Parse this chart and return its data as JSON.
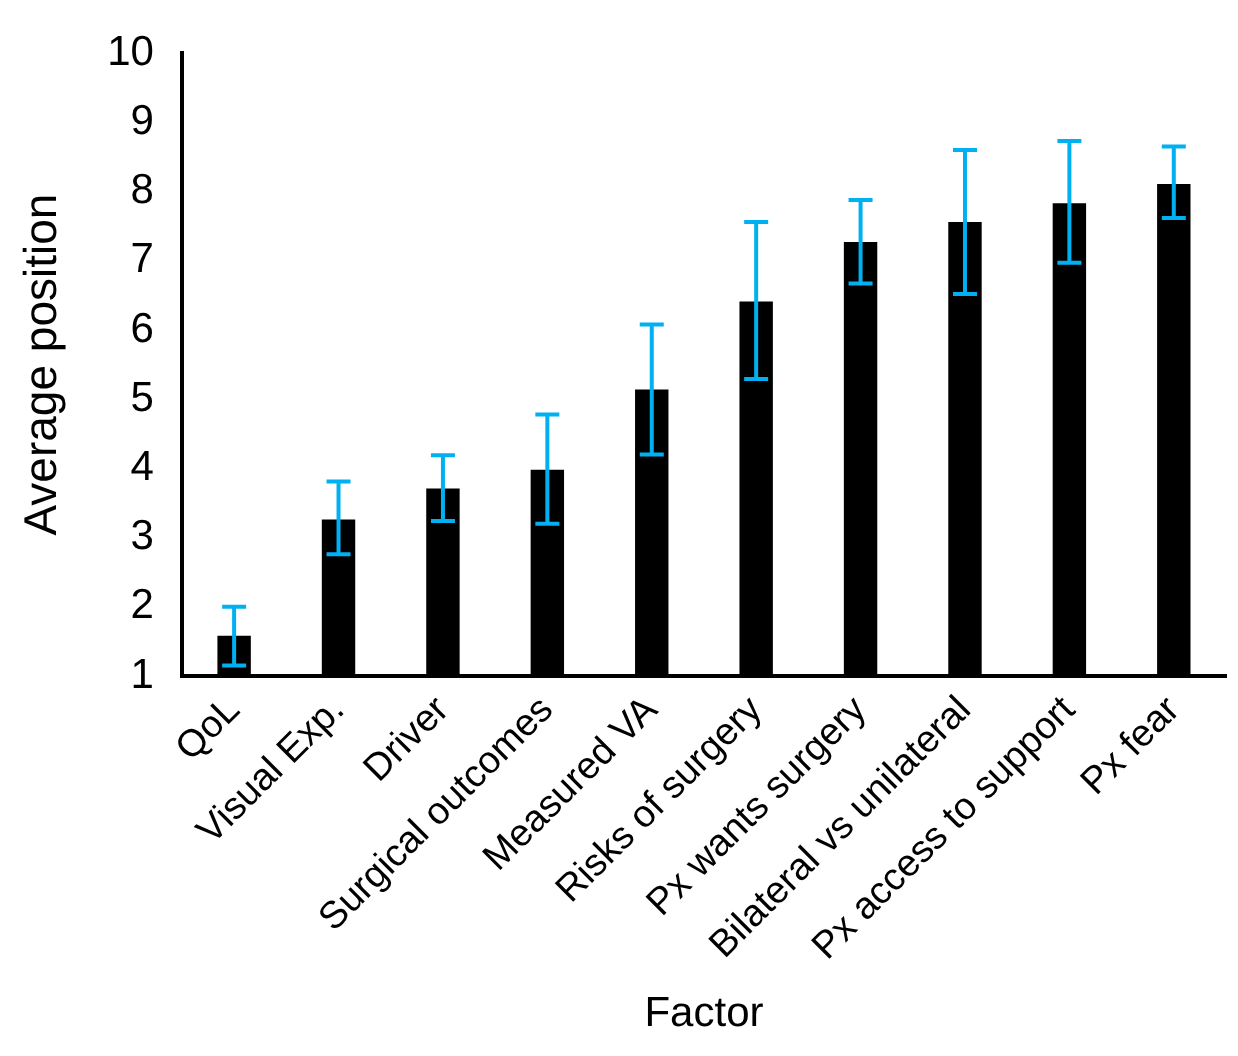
{
  "chart_data": {
    "type": "bar",
    "xlabel": "Factor",
    "ylabel": "Average position",
    "categories": [
      "QoL",
      "Visual Exp.",
      "Driver",
      "Surgical outcomes",
      "Measured VA",
      "Risks of surgery",
      "Px wants surgery",
      "Bilateral vs unilateral",
      "Px access to support",
      "Px fear"
    ],
    "values": [
      1.58,
      3.26,
      3.71,
      3.98,
      5.14,
      6.41,
      7.27,
      7.56,
      7.83,
      8.11
    ],
    "errors": [
      [
        1.15,
        2.0
      ],
      [
        2.76,
        3.81
      ],
      [
        3.24,
        4.19
      ],
      [
        3.2,
        4.78
      ],
      [
        4.2,
        6.08
      ],
      [
        5.29,
        7.56
      ],
      [
        6.67,
        7.88
      ],
      [
        6.52,
        8.6
      ],
      [
        6.97,
        8.73
      ],
      [
        7.62,
        8.65
      ]
    ],
    "color": "#000000",
    "ylim": [
      1,
      10
    ],
    "yticks": [
      1,
      2,
      3,
      4,
      5,
      6,
      7,
      8,
      9,
      10
    ],
    "grid": false,
    "legend": false
  }
}
